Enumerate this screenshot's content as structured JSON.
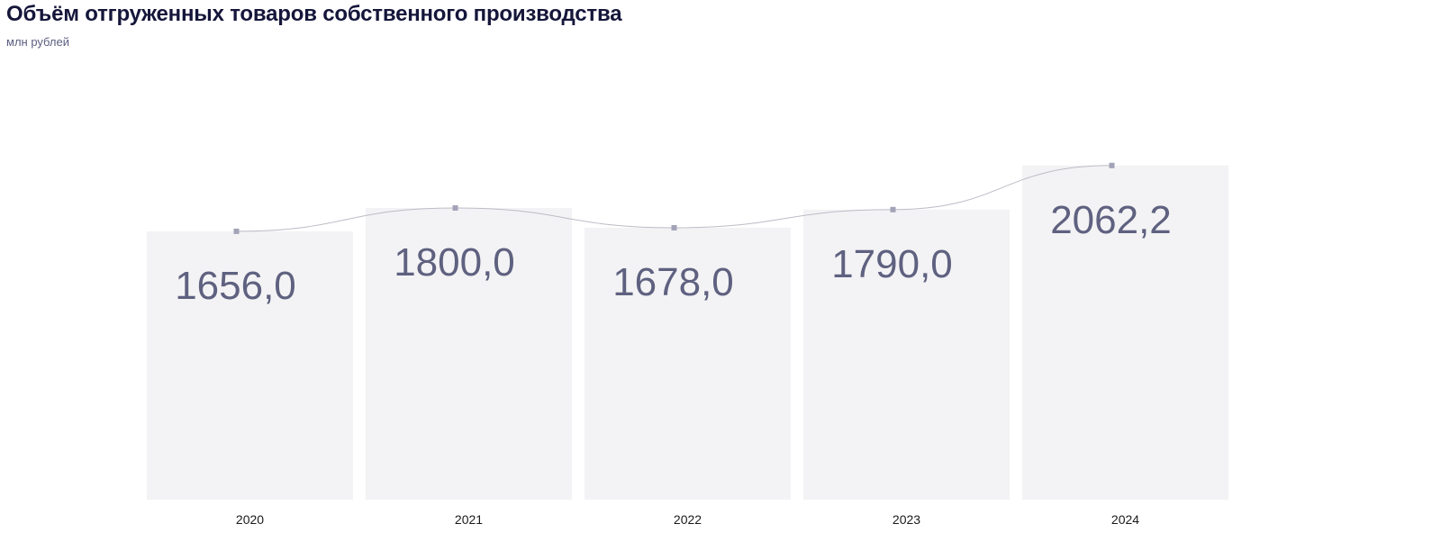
{
  "header": {
    "title": "Объём отгруженных товаров собственного производства",
    "subtitle": "млн рублей"
  },
  "colors": {
    "bar": "#f3f3f5",
    "value_text": "#5f6180",
    "line": "#bcbcc6",
    "marker": "#a3a3b8",
    "tick_text": "#1a1a1a"
  },
  "chart_data": {
    "type": "bar",
    "title": "Объём отгруженных товаров собственного производства",
    "subtitle": "млн рублей",
    "categories": [
      "2020",
      "2021",
      "2022",
      "2023",
      "2024"
    ],
    "values": [
      1656.0,
      1800.0,
      1678.0,
      1790.0,
      2062.2
    ],
    "value_labels": [
      "1656,0",
      "1800,0",
      "1678,0",
      "1790,0",
      "2062,2"
    ],
    "overlay": "smooth-line-through-bar-tops",
    "grid": false,
    "legend": "none"
  }
}
